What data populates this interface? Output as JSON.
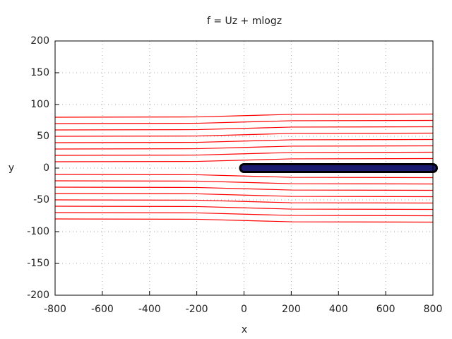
{
  "chart_data": {
    "type": "line",
    "title": "f = Uz + mlogz",
    "x_label": "x",
    "y_label": "y",
    "xlim": [
      -800,
      800
    ],
    "xticks": [
      -800,
      -600,
      -400,
      -200,
      0,
      200,
      400,
      600,
      800
    ],
    "ylim": [
      -200,
      200
    ],
    "yticks": [
      -200,
      -150,
      -100,
      -50,
      0,
      50,
      100,
      150,
      200
    ],
    "grid": true,
    "x": [
      -800,
      -200,
      0,
      200,
      800
    ],
    "series": [
      {
        "color": "#ff0000",
        "values": [
          10,
          10.5,
          12.5,
          14.5,
          15
        ]
      },
      {
        "color": "#ff0000",
        "values": [
          20,
          20.5,
          22.5,
          24.5,
          25
        ]
      },
      {
        "color": "#ff0000",
        "values": [
          30,
          30.5,
          32.5,
          34.5,
          35
        ]
      },
      {
        "color": "#ff0000",
        "values": [
          40,
          40.5,
          42.5,
          44.5,
          45
        ]
      },
      {
        "color": "#ff0000",
        "values": [
          50,
          50.5,
          52.5,
          54.5,
          55
        ]
      },
      {
        "color": "#ff0000",
        "values": [
          60,
          60.5,
          62.5,
          64.5,
          65
        ]
      },
      {
        "color": "#ff0000",
        "values": [
          70,
          70.5,
          72.5,
          74.5,
          75
        ]
      },
      {
        "color": "#ff0000",
        "values": [
          80,
          80.5,
          82.5,
          84.5,
          85
        ]
      },
      {
        "color": "#ff0000",
        "values": [
          -10,
          -10.5,
          -12.5,
          -14.5,
          -15
        ]
      },
      {
        "color": "#ff0000",
        "values": [
          -20,
          -20.5,
          -22.5,
          -24.5,
          -25
        ]
      },
      {
        "color": "#ff0000",
        "values": [
          -30,
          -30.5,
          -32.5,
          -34.5,
          -35
        ]
      },
      {
        "color": "#ff0000",
        "values": [
          -40,
          -40.5,
          -42.5,
          -44.5,
          -45
        ]
      },
      {
        "color": "#ff0000",
        "values": [
          -50,
          -50.5,
          -52.5,
          -54.5,
          -55
        ]
      },
      {
        "color": "#ff0000",
        "values": [
          -60,
          -60.5,
          -62.5,
          -64.5,
          -65
        ]
      },
      {
        "color": "#ff0000",
        "values": [
          -70,
          -70.5,
          -72.5,
          -74.5,
          -75
        ]
      },
      {
        "color": "#ff0000",
        "values": [
          -80,
          -80.5,
          -82.5,
          -84.5,
          -85
        ]
      }
    ],
    "body": {
      "color": "#1a1a70",
      "x": [
        0,
        800
      ],
      "values": [
        0,
        0
      ]
    }
  }
}
